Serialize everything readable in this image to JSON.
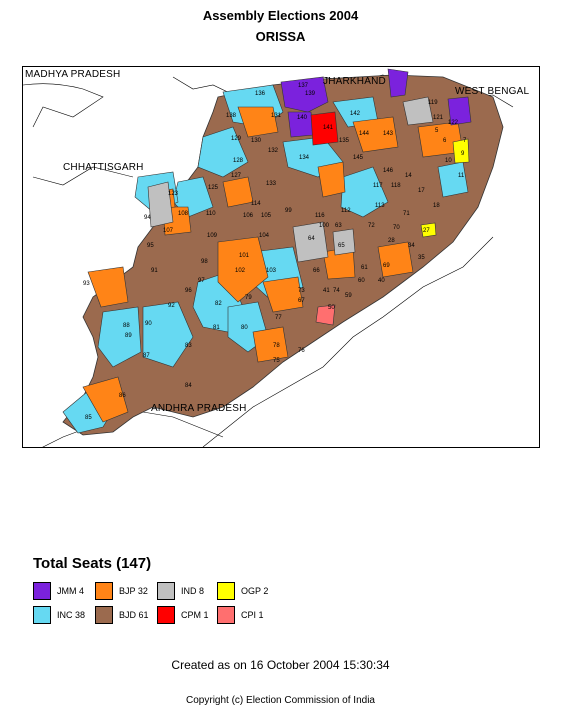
{
  "header": {
    "title": "Assembly Elections 2004",
    "state": "ORISSA"
  },
  "map": {
    "places": [
      "MADHYA PRADESH",
      "JHARKHAND",
      "WEST BENGAL",
      "CHHATTISGARH",
      "ANDHRA PRADESH"
    ],
    "constituency_labels": [
      "136",
      "137",
      "138",
      "139",
      "140",
      "141",
      "142",
      "131",
      "130",
      "129",
      "128",
      "132",
      "134",
      "135",
      "133",
      "145",
      "144",
      "143",
      "146",
      "123",
      "125",
      "127",
      "108",
      "110",
      "114",
      "116",
      "105",
      "106",
      "107",
      "109",
      "94",
      "95",
      "93",
      "101",
      "102",
      "103",
      "104",
      "64",
      "65",
      "66",
      "67",
      "63",
      "61",
      "77",
      "78",
      "79",
      "80",
      "81",
      "82",
      "83",
      "84",
      "85",
      "86",
      "87",
      "88",
      "89",
      "90",
      "91",
      "92",
      "96",
      "97",
      "98",
      "99",
      "100",
      "112",
      "113",
      "117",
      "118",
      "119",
      "121",
      "122",
      "5",
      "6",
      "7",
      "9",
      "10",
      "11",
      "14",
      "17",
      "18",
      "27",
      "28",
      "34",
      "35",
      "40",
      "41",
      "50",
      "59",
      "60",
      "69",
      "70",
      "71",
      "72",
      "73",
      "74",
      "75",
      "76"
    ]
  },
  "legend": {
    "total": "Total Seats (147)",
    "items": [
      {
        "label": "JMM  4",
        "color": "#7b22dd"
      },
      {
        "label": "BJP  32",
        "color": "#ff8417"
      },
      {
        "label": "IND  8",
        "color": "#c0c0c0"
      },
      {
        "label": "OGP  2",
        "color": "#ffff00"
      },
      {
        "label": "INC  38",
        "color": "#66d9f2"
      },
      {
        "label": "BJD  61",
        "color": "#9b6a4e"
      },
      {
        "label": "CPM  1",
        "color": "#ff0000"
      },
      {
        "label": "CPI  1",
        "color": "#ff6f6f"
      }
    ]
  },
  "footer": {
    "created": "Created as on 16 October 2004 15:30:34",
    "copyright": "Copyright (c) Election Commission of India"
  }
}
